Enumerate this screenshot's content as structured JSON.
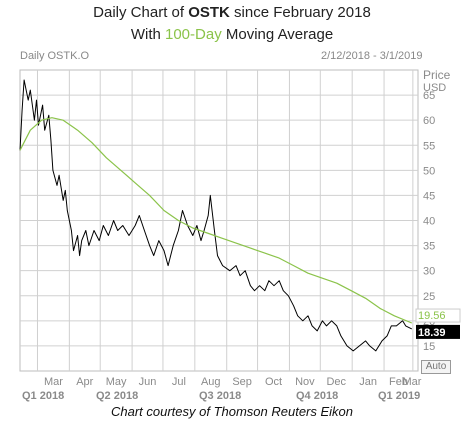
{
  "title": {
    "line1_prefix": "Daily Chart of ",
    "ticker": "OSTK",
    "line1_suffix": " since February 2018",
    "line2_prefix": "With ",
    "line2_highlight": "100-Day",
    "line2_suffix": " Moving Average"
  },
  "header": {
    "series_label": "Daily OSTK.O",
    "date_range": "2/12/2018 - 3/1/2019"
  },
  "axis": {
    "price_label": "Price",
    "currency_label": "USD"
  },
  "price_tags": {
    "ma_value": "19.56",
    "last_value": "18.39"
  },
  "auto_button": "Auto",
  "caption": "Chart courtesy of Thomson Reuters Eikon",
  "colors": {
    "price_line": "#000000",
    "moving_average": "#8bc34a",
    "grid": "#d0d0d0",
    "last_tag_bg": "#000000",
    "ma_tag_bg": "#ffffff"
  },
  "chart_data": {
    "type": "line",
    "ylim": [
      10,
      70
    ],
    "y_ticks": [
      15,
      20,
      25,
      30,
      35,
      40,
      45,
      50,
      55,
      60,
      65
    ],
    "x_month_labels": [
      "Mar",
      "Apr",
      "May",
      "Jun",
      "Jul",
      "Aug",
      "Sep",
      "Oct",
      "Nov",
      "Dec",
      "Jan",
      "Feb",
      "Mar"
    ],
    "x_quarter_labels": [
      "Q1 2018",
      "Q2 2018",
      "Q3 2018",
      "Q4 2018",
      "Q1 2019"
    ],
    "grid": true,
    "series": [
      {
        "name": "OSTK.O",
        "kind": "daily_price",
        "points": [
          [
            "2018-02-12",
            54
          ],
          [
            "2018-02-14",
            62
          ],
          [
            "2018-02-16",
            68
          ],
          [
            "2018-02-20",
            64
          ],
          [
            "2018-02-22",
            66
          ],
          [
            "2018-02-26",
            60
          ],
          [
            "2018-02-28",
            64
          ],
          [
            "2018-03-02",
            59
          ],
          [
            "2018-03-06",
            63
          ],
          [
            "2018-03-08",
            58
          ],
          [
            "2018-03-12",
            61
          ],
          [
            "2018-03-14",
            56
          ],
          [
            "2018-03-16",
            50
          ],
          [
            "2018-03-20",
            47
          ],
          [
            "2018-03-22",
            49
          ],
          [
            "2018-03-26",
            44
          ],
          [
            "2018-03-28",
            46
          ],
          [
            "2018-03-30",
            42
          ],
          [
            "2018-04-03",
            38
          ],
          [
            "2018-04-05",
            34
          ],
          [
            "2018-04-09",
            37
          ],
          [
            "2018-04-11",
            33
          ],
          [
            "2018-04-13",
            36
          ],
          [
            "2018-04-17",
            38
          ],
          [
            "2018-04-20",
            35
          ],
          [
            "2018-04-25",
            38
          ],
          [
            "2018-04-30",
            36
          ],
          [
            "2018-05-04",
            39
          ],
          [
            "2018-05-09",
            37
          ],
          [
            "2018-05-14",
            40
          ],
          [
            "2018-05-18",
            38
          ],
          [
            "2018-05-23",
            39
          ],
          [
            "2018-05-29",
            37
          ],
          [
            "2018-06-04",
            39
          ],
          [
            "2018-06-08",
            41
          ],
          [
            "2018-06-13",
            38
          ],
          [
            "2018-06-18",
            35
          ],
          [
            "2018-06-22",
            33
          ],
          [
            "2018-06-27",
            36
          ],
          [
            "2018-07-02",
            34
          ],
          [
            "2018-07-06",
            31
          ],
          [
            "2018-07-11",
            35
          ],
          [
            "2018-07-16",
            38
          ],
          [
            "2018-07-20",
            42
          ],
          [
            "2018-07-25",
            39
          ],
          [
            "2018-07-30",
            37
          ],
          [
            "2018-08-03",
            39
          ],
          [
            "2018-08-07",
            36
          ],
          [
            "2018-08-10",
            38
          ],
          [
            "2018-08-14",
            41
          ],
          [
            "2018-08-16",
            45
          ],
          [
            "2018-08-20",
            38
          ],
          [
            "2018-08-23",
            33
          ],
          [
            "2018-08-28",
            31
          ],
          [
            "2018-09-04",
            30
          ],
          [
            "2018-09-10",
            31
          ],
          [
            "2018-09-14",
            29
          ],
          [
            "2018-09-19",
            30
          ],
          [
            "2018-09-24",
            27
          ],
          [
            "2018-09-28",
            26
          ],
          [
            "2018-10-03",
            27
          ],
          [
            "2018-10-08",
            26
          ],
          [
            "2018-10-12",
            28
          ],
          [
            "2018-10-17",
            27
          ],
          [
            "2018-10-22",
            28
          ],
          [
            "2018-10-26",
            26
          ],
          [
            "2018-10-31",
            25
          ],
          [
            "2018-11-05",
            23
          ],
          [
            "2018-11-09",
            21
          ],
          [
            "2018-11-14",
            20
          ],
          [
            "2018-11-19",
            21
          ],
          [
            "2018-11-23",
            19
          ],
          [
            "2018-11-28",
            18
          ],
          [
            "2018-12-03",
            20
          ],
          [
            "2018-12-07",
            19
          ],
          [
            "2018-12-12",
            20
          ],
          [
            "2018-12-17",
            19
          ],
          [
            "2018-12-21",
            17
          ],
          [
            "2018-12-27",
            15
          ],
          [
            "2019-01-02",
            14
          ],
          [
            "2019-01-08",
            15
          ],
          [
            "2019-01-14",
            16
          ],
          [
            "2019-01-18",
            15
          ],
          [
            "2019-01-24",
            14
          ],
          [
            "2019-01-30",
            16
          ],
          [
            "2019-02-04",
            17
          ],
          [
            "2019-02-08",
            19
          ],
          [
            "2019-02-13",
            19
          ],
          [
            "2019-02-19",
            20
          ],
          [
            "2019-02-22",
            19
          ],
          [
            "2019-02-28",
            18.39
          ]
        ]
      },
      {
        "name": "100-Day Moving Average",
        "kind": "moving_average",
        "points": [
          [
            "2018-02-12",
            54
          ],
          [
            "2018-02-22",
            58
          ],
          [
            "2018-03-05",
            60
          ],
          [
            "2018-03-15",
            60.5
          ],
          [
            "2018-03-26",
            60
          ],
          [
            "2018-04-09",
            58
          ],
          [
            "2018-04-23",
            55.5
          ],
          [
            "2018-05-07",
            52.5
          ],
          [
            "2018-05-21",
            50
          ],
          [
            "2018-06-04",
            47.5
          ],
          [
            "2018-06-18",
            45
          ],
          [
            "2018-07-02",
            42
          ],
          [
            "2018-07-16",
            40
          ],
          [
            "2018-07-30",
            38.5
          ],
          [
            "2018-08-13",
            37.5
          ],
          [
            "2018-08-27",
            36.5
          ],
          [
            "2018-09-10",
            35.5
          ],
          [
            "2018-09-24",
            34.5
          ],
          [
            "2018-10-08",
            33.5
          ],
          [
            "2018-10-22",
            32.5
          ],
          [
            "2018-11-05",
            31
          ],
          [
            "2018-11-19",
            29.5
          ],
          [
            "2018-12-03",
            28.5
          ],
          [
            "2018-12-17",
            27.5
          ],
          [
            "2018-12-31",
            26
          ],
          [
            "2019-01-14",
            24.5
          ],
          [
            "2019-01-28",
            22.5
          ],
          [
            "2019-02-11",
            21
          ],
          [
            "2019-02-28",
            19.56
          ]
        ]
      }
    ]
  }
}
